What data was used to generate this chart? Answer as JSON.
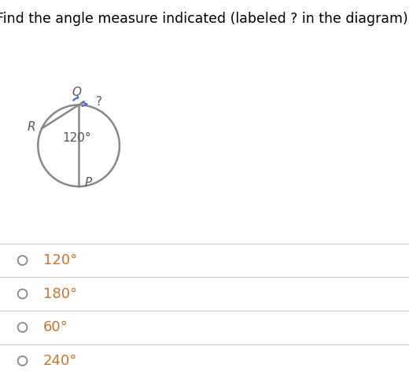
{
  "title": "Find the angle measure indicated (labeled ? in the diagram).",
  "title_fontsize": 12.5,
  "title_color": "#000000",
  "background_color": "#ffffff",
  "circle_color": "#888888",
  "circle_linewidth": 1.8,
  "line_color": "#888888",
  "line_linewidth": 1.8,
  "angle_arc_color": "#4466cc",
  "choices": [
    "120°",
    "180°",
    "60°",
    "240°"
  ],
  "choices_color": "#c87533",
  "choices_fontsize": 13,
  "radio_color": "#888888",
  "divider_color": "#cccccc",
  "label_color": "#555555",
  "label_fontsize": 11
}
